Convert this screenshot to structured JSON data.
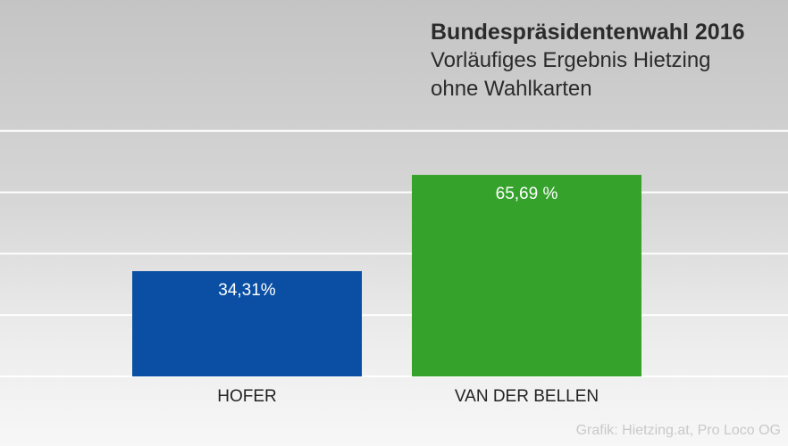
{
  "chart_data": {
    "type": "bar",
    "title": "Bundespräsidentenwahl 2016",
    "subtitle_lines": [
      "Vorläufiges Ergebnis Hietzing",
      "ohne Wahlkarten"
    ],
    "categories": [
      "HOFER",
      "VAN DER BELLEN"
    ],
    "values": [
      34.31,
      65.69
    ],
    "value_labels": [
      "34,31%",
      "65,69 %"
    ],
    "colors": [
      "#0a4fa3",
      "#35a22c"
    ],
    "ylim": [
      0,
      100
    ],
    "grid": true,
    "gridlines": [
      0,
      20,
      40,
      60,
      80
    ],
    "xlabel": "",
    "ylabel": ""
  },
  "credit": "Grafik: Hietzing.at, Pro Loco OG"
}
